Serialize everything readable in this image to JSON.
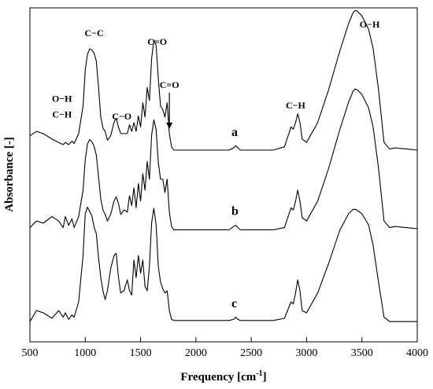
{
  "chart_data": {
    "type": "line",
    "title": "",
    "xlabel": "Frequency [cm",
    "xlabel_sup": "-1",
    "xlabel_end": "]",
    "ylabel": "Absorbance [-]",
    "xlim": [
      500,
      4000
    ],
    "y_ticks_shown": false,
    "x_ticks": [
      500,
      1000,
      1500,
      2000,
      2500,
      3000,
      3500,
      4000
    ],
    "x_tick_labels": [
      "500",
      "1000",
      "1500",
      "2000",
      "2500",
      "3000",
      "3500",
      "4000"
    ],
    "series": [
      {
        "name": "a",
        "x": [
          500,
          560,
          620,
          700,
          760,
          800,
          820,
          850,
          880,
          900,
          940,
          980,
          1000,
          1020,
          1040,
          1060,
          1080,
          1100,
          1120,
          1140,
          1160,
          1180,
          1200,
          1230,
          1260,
          1280,
          1300,
          1320,
          1350,
          1380,
          1400,
          1420,
          1440,
          1460,
          1480,
          1500,
          1520,
          1540,
          1560,
          1580,
          1600,
          1620,
          1640,
          1660,
          1680,
          1700,
          1720,
          1740,
          1760,
          1780,
          1800,
          2000,
          2300,
          2340,
          2360,
          2380,
          2400,
          2700,
          2800,
          2840,
          2860,
          2880,
          2900,
          2920,
          2940,
          2960,
          3000,
          3100,
          3200,
          3300,
          3380,
          3420,
          3440,
          3460,
          3500,
          3560,
          3600,
          3650,
          3700,
          3750,
          3800,
          3900,
          4000
        ],
        "y": [
          0.18,
          0.22,
          0.2,
          0.15,
          0.12,
          0.1,
          0.12,
          0.1,
          0.13,
          0.11,
          0.2,
          0.45,
          0.78,
          0.92,
          0.97,
          0.96,
          0.93,
          0.86,
          0.62,
          0.35,
          0.25,
          0.22,
          0.14,
          0.18,
          0.3,
          0.34,
          0.26,
          0.2,
          0.2,
          0.2,
          0.28,
          0.22,
          0.3,
          0.22,
          0.36,
          0.26,
          0.48,
          0.35,
          0.62,
          0.5,
          0.88,
          1.05,
          1.0,
          0.7,
          0.45,
          0.42,
          0.35,
          0.48,
          0.2,
          0.08,
          0.05,
          0.05,
          0.05,
          0.07,
          0.09,
          0.07,
          0.05,
          0.05,
          0.08,
          0.2,
          0.26,
          0.24,
          0.3,
          0.38,
          0.3,
          0.15,
          0.12,
          0.3,
          0.6,
          0.95,
          1.2,
          1.3,
          1.32,
          1.31,
          1.27,
          1.15,
          0.98,
          0.6,
          0.12,
          0.06,
          0.07,
          0.06,
          0.05
        ]
      },
      {
        "name": "b",
        "x": [
          500,
          560,
          620,
          700,
          760,
          800,
          820,
          850,
          880,
          900,
          940,
          980,
          1000,
          1020,
          1040,
          1060,
          1080,
          1100,
          1120,
          1140,
          1160,
          1180,
          1200,
          1230,
          1260,
          1280,
          1300,
          1320,
          1350,
          1380,
          1400,
          1420,
          1440,
          1460,
          1480,
          1500,
          1520,
          1540,
          1560,
          1580,
          1600,
          1620,
          1640,
          1660,
          1680,
          1700,
          1720,
          1740,
          1760,
          1780,
          1800,
          2000,
          2300,
          2340,
          2360,
          2380,
          2400,
          2700,
          2800,
          2840,
          2860,
          2880,
          2900,
          2920,
          2940,
          2960,
          3000,
          3100,
          3200,
          3300,
          3380,
          3420,
          3440,
          3460,
          3500,
          3560,
          3600,
          3650,
          3700,
          3750,
          3800,
          3900,
          4000
        ],
        "y": [
          0.06,
          0.12,
          0.1,
          0.16,
          0.12,
          0.06,
          0.16,
          0.08,
          0.14,
          0.06,
          0.16,
          0.4,
          0.68,
          0.82,
          0.86,
          0.84,
          0.8,
          0.72,
          0.52,
          0.32,
          0.22,
          0.18,
          0.12,
          0.18,
          0.3,
          0.34,
          0.28,
          0.18,
          0.22,
          0.2,
          0.35,
          0.26,
          0.42,
          0.24,
          0.46,
          0.3,
          0.55,
          0.4,
          0.66,
          0.5,
          0.9,
          1.04,
          0.95,
          0.65,
          0.5,
          0.5,
          0.38,
          0.5,
          0.2,
          0.07,
          0.04,
          0.04,
          0.04,
          0.07,
          0.08,
          0.06,
          0.04,
          0.04,
          0.06,
          0.18,
          0.24,
          0.22,
          0.3,
          0.4,
          0.3,
          0.15,
          0.12,
          0.3,
          0.6,
          0.95,
          1.2,
          1.3,
          1.32,
          1.31,
          1.27,
          1.15,
          0.98,
          0.6,
          0.12,
          0.06,
          0.07,
          0.06,
          0.05
        ]
      },
      {
        "name": "c",
        "x": [
          500,
          560,
          620,
          700,
          760,
          800,
          820,
          850,
          880,
          900,
          940,
          980,
          1000,
          1020,
          1040,
          1060,
          1080,
          1100,
          1120,
          1140,
          1160,
          1180,
          1200,
          1230,
          1260,
          1280,
          1300,
          1320,
          1350,
          1380,
          1400,
          1420,
          1440,
          1460,
          1480,
          1500,
          1520,
          1540,
          1560,
          1580,
          1600,
          1620,
          1640,
          1660,
          1680,
          1700,
          1720,
          1740,
          1760,
          1780,
          1800,
          2000,
          2300,
          2340,
          2360,
          2380,
          2400,
          2700,
          2800,
          2840,
          2860,
          2880,
          2900,
          2920,
          2940,
          2960,
          3000,
          3100,
          3200,
          3300,
          3380,
          3420,
          3440,
          3460,
          3500,
          3560,
          3600,
          3650,
          3700,
          3750,
          3800,
          3900,
          4000
        ],
        "y": [
          0.02,
          0.12,
          0.1,
          0.05,
          0.12,
          0.06,
          0.1,
          0.04,
          0.08,
          0.06,
          0.2,
          0.62,
          1.0,
          1.06,
          1.02,
          0.98,
          0.88,
          0.82,
          0.6,
          0.42,
          0.3,
          0.22,
          0.3,
          0.5,
          0.62,
          0.64,
          0.42,
          0.28,
          0.3,
          0.4,
          0.3,
          0.26,
          0.58,
          0.42,
          0.62,
          0.46,
          0.58,
          0.34,
          0.3,
          0.52,
          0.92,
          1.05,
          0.9,
          0.52,
          0.38,
          0.32,
          0.28,
          0.3,
          0.12,
          0.04,
          0.03,
          0.03,
          0.03,
          0.04,
          0.06,
          0.04,
          0.03,
          0.03,
          0.05,
          0.15,
          0.2,
          0.18,
          0.28,
          0.4,
          0.3,
          0.12,
          0.1,
          0.28,
          0.55,
          0.85,
          1.0,
          1.04,
          1.04,
          1.03,
          1.0,
          0.9,
          0.72,
          0.38,
          0.06,
          0.02,
          0.02,
          0.02,
          0.02
        ]
      }
    ],
    "series_labels": [
      {
        "text": "a",
        "x": 2350,
        "series": "a"
      },
      {
        "text": "b",
        "x": 2350,
        "series": "b"
      },
      {
        "text": "c",
        "x": 2350,
        "series": "c"
      }
    ],
    "annotations": [
      {
        "text": "C−C",
        "x": 1080
      },
      {
        "text": "C=O",
        "x": 1650
      },
      {
        "text": "C=O",
        "x": 1760
      },
      {
        "text": "O−H",
        "x": 3570
      },
      {
        "text": "C−H",
        "x": 2900
      },
      {
        "text": "C−O",
        "x": 1330
      },
      {
        "text": "O−H",
        "x": 790
      },
      {
        "text": "C−H",
        "x": 790
      }
    ],
    "arrow": {
      "from_text": "C=O",
      "points_to": 1760
    }
  }
}
